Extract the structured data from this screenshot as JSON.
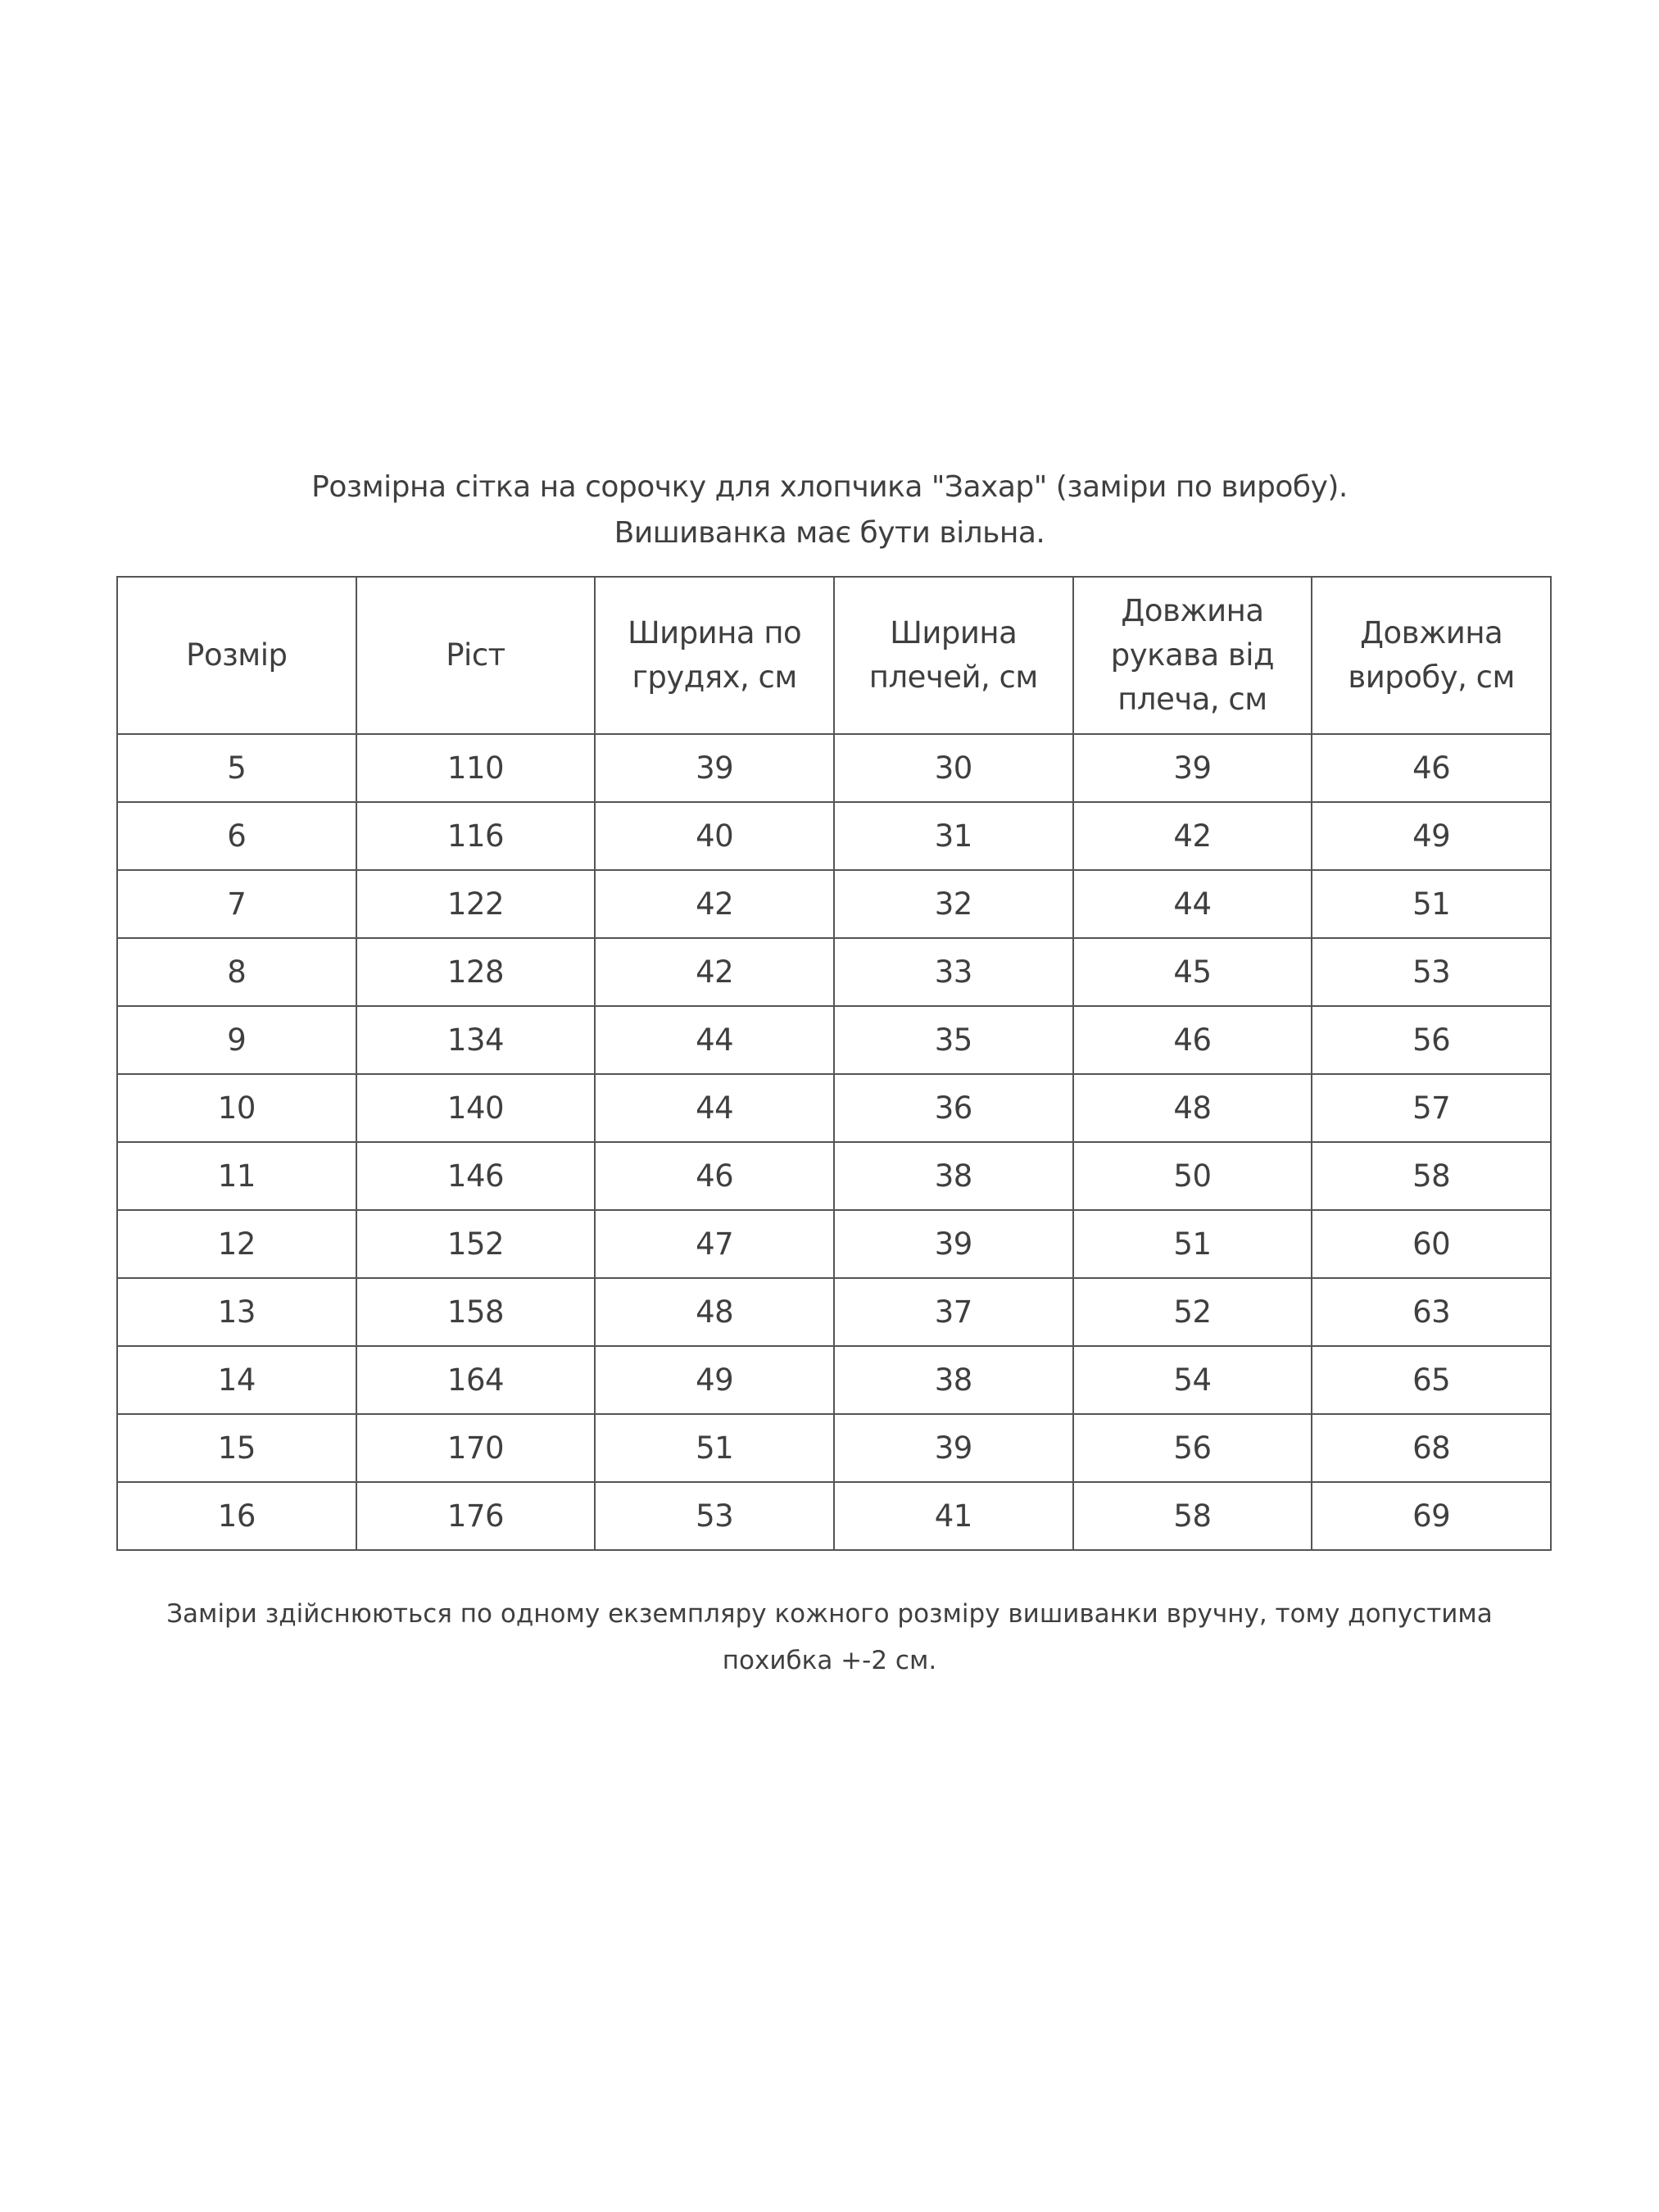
{
  "title_line1": "Розмірна сітка на сорочку для хлопчика \"Захар\" (заміри по виробу).",
  "title_line2": "Вишиванка має бути вільна.",
  "table": {
    "headers": [
      "Розмір",
      "Ріст",
      "Ширина по грудях, см",
      "Ширина плечей, см",
      "Довжина рукава від плеча, см",
      "Довжина виробу, см"
    ],
    "rows": [
      [
        "5",
        "110",
        "39",
        "30",
        "39",
        "46"
      ],
      [
        "6",
        "116",
        "40",
        "31",
        "42",
        "49"
      ],
      [
        "7",
        "122",
        "42",
        "32",
        "44",
        "51"
      ],
      [
        "8",
        "128",
        "42",
        "33",
        "45",
        "53"
      ],
      [
        "9",
        "134",
        "44",
        "35",
        "46",
        "56"
      ],
      [
        "10",
        "140",
        "44",
        "36",
        "48",
        "57"
      ],
      [
        "11",
        "146",
        "46",
        "38",
        "50",
        "58"
      ],
      [
        "12",
        "152",
        "47",
        "39",
        "51",
        "60"
      ],
      [
        "13",
        "158",
        "48",
        "37",
        "52",
        "63"
      ],
      [
        "14",
        "164",
        "49",
        "38",
        "54",
        "65"
      ],
      [
        "15",
        "170",
        "51",
        "39",
        "56",
        "68"
      ],
      [
        "16",
        "176",
        "53",
        "41",
        "58",
        "69"
      ]
    ]
  },
  "footnote": "Заміри здійснюються  по одному екземпляру кожного розміру вишиванки вручну, тому допустима похибка +-2 см."
}
